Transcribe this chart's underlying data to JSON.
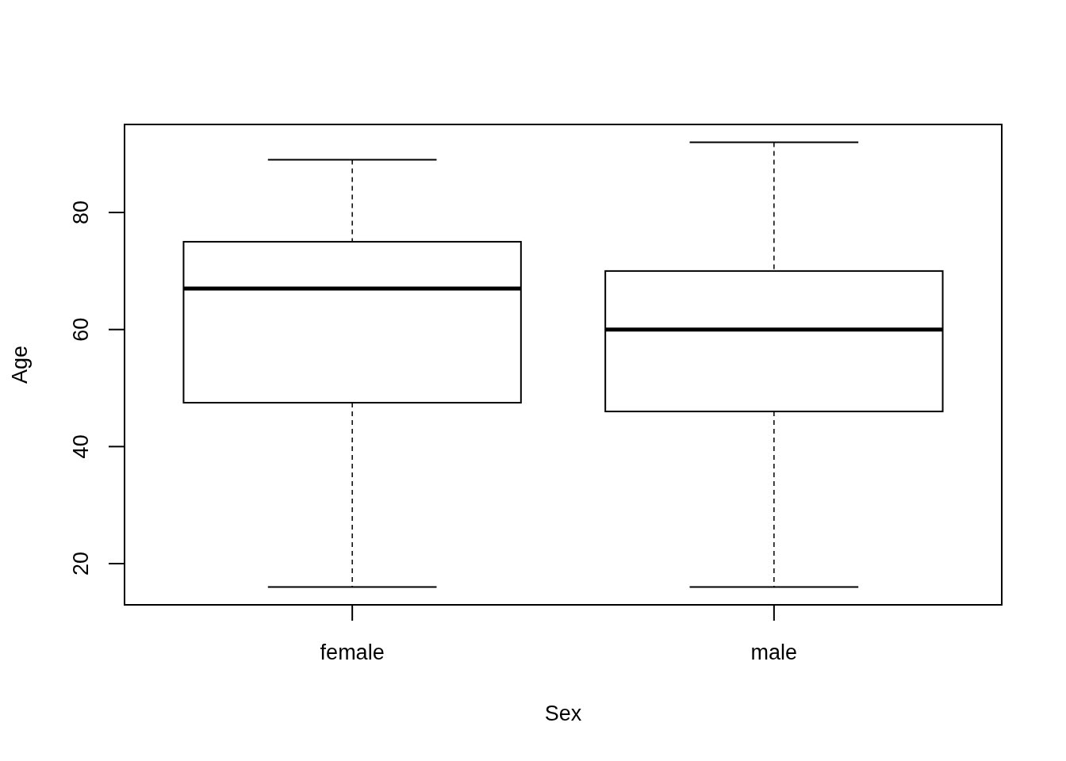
{
  "chart_data": {
    "type": "box",
    "xlabel": "Sex",
    "ylabel": "Age",
    "categories": [
      "female",
      "male"
    ],
    "boxes": [
      {
        "low": 16,
        "q1": 47.5,
        "median": 67,
        "q3": 75,
        "high": 89
      },
      {
        "low": 16,
        "q1": 46,
        "median": 60,
        "q3": 70,
        "high": 92
      }
    ],
    "ylim": [
      12.96,
      95.04
    ],
    "yticks": [
      20,
      40,
      60,
      80
    ]
  }
}
